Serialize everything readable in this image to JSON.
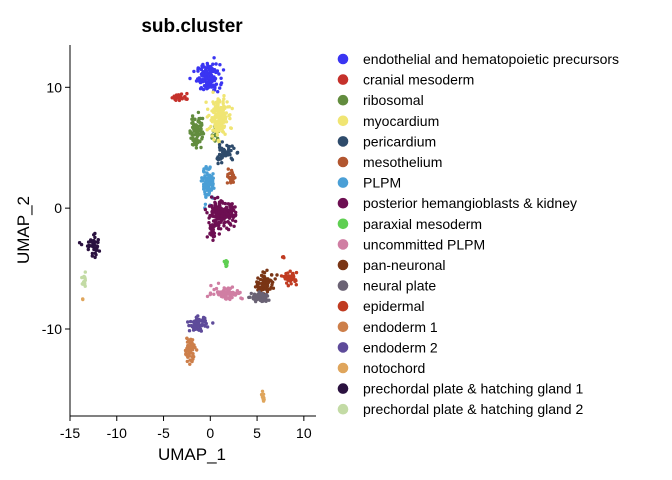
{
  "chart_data": {
    "type": "scatter",
    "title": "sub.cluster",
    "xlabel": "UMAP_1",
    "ylabel": "UMAP_2",
    "xlim": [
      -15,
      11.3
    ],
    "ylim": [
      -17.2,
      13.5
    ],
    "xticks": [
      -15,
      -10,
      -5,
      0,
      5,
      10
    ],
    "xtick_labels": [
      "-15",
      "-10",
      "-5",
      "0",
      "5",
      "10"
    ],
    "yticks": [
      -10,
      0,
      10
    ],
    "ytick_labels": [
      "-10",
      "0",
      "10"
    ],
    "grid": false,
    "legend_position": "right",
    "series": [
      {
        "name": "endothelial and hematopoietic precursors",
        "color": "#3a35f2",
        "clusters": [
          {
            "cx": -0.2,
            "cy": 10.8,
            "sx": 1.1,
            "sy": 1.0,
            "n": 140
          }
        ]
      },
      {
        "name": "cranial mesoderm",
        "color": "#c5312b",
        "clusters": [
          {
            "cx": -3.2,
            "cy": 9.2,
            "sx": 0.9,
            "sy": 0.25,
            "n": 30
          }
        ]
      },
      {
        "name": "ribosomal",
        "color": "#628c3e",
        "clusters": [
          {
            "cx": -1.5,
            "cy": 6.5,
            "sx": 0.6,
            "sy": 1.4,
            "n": 80
          },
          {
            "cx": 0.6,
            "cy": 6.2,
            "sx": 0.5,
            "sy": 0.8,
            "n": 20
          }
        ]
      },
      {
        "name": "myocardium",
        "color": "#f0e573",
        "clusters": [
          {
            "cx": 0.9,
            "cy": 7.5,
            "sx": 0.9,
            "sy": 1.4,
            "n": 170
          }
        ]
      },
      {
        "name": "pericardium",
        "color": "#2e4b6b",
        "clusters": [
          {
            "cx": 1.5,
            "cy": 4.5,
            "sx": 1.0,
            "sy": 0.6,
            "n": 60
          }
        ]
      },
      {
        "name": "mesothelium",
        "color": "#b2562f",
        "clusters": [
          {
            "cx": 2.2,
            "cy": 2.5,
            "sx": 0.3,
            "sy": 0.6,
            "n": 25
          }
        ]
      },
      {
        "name": "PLPM",
        "color": "#4a9fd6",
        "clusters": [
          {
            "cx": -0.2,
            "cy": 2.0,
            "sx": 0.6,
            "sy": 1.2,
            "n": 90
          }
        ]
      },
      {
        "name": "posterior hemangioblasts & kidney",
        "color": "#6d0f52",
        "clusters": [
          {
            "cx": 1.2,
            "cy": -0.5,
            "sx": 1.3,
            "sy": 0.9,
            "n": 190
          },
          {
            "cx": 0.2,
            "cy": -1.8,
            "sx": 0.4,
            "sy": 0.6,
            "n": 25
          }
        ]
      },
      {
        "name": "paraxial mesoderm",
        "color": "#5fcf52",
        "clusters": [
          {
            "cx": 1.7,
            "cy": -4.6,
            "sx": 0.2,
            "sy": 0.4,
            "n": 15
          }
        ]
      },
      {
        "name": "uncommitted PLPM",
        "color": "#d07ea3",
        "clusters": [
          {
            "cx": 1.8,
            "cy": -7.0,
            "sx": 1.5,
            "sy": 0.5,
            "n": 70
          }
        ]
      },
      {
        "name": "pan-neuronal",
        "color": "#7a3515",
        "clusters": [
          {
            "cx": 5.9,
            "cy": -6.2,
            "sx": 0.9,
            "sy": 0.7,
            "n": 90
          }
        ]
      },
      {
        "name": "neural plate",
        "color": "#6a6274",
        "clusters": [
          {
            "cx": 5.3,
            "cy": -7.4,
            "sx": 0.8,
            "sy": 0.4,
            "n": 70
          }
        ]
      },
      {
        "name": "epidermal",
        "color": "#c03b21",
        "clusters": [
          {
            "cx": 8.6,
            "cy": -5.8,
            "sx": 0.6,
            "sy": 0.4,
            "n": 40
          },
          {
            "cx": 7.8,
            "cy": -4.0,
            "sx": 0.1,
            "sy": 0.2,
            "n": 3
          }
        ]
      },
      {
        "name": "endoderm 1",
        "color": "#cd7f4a",
        "clusters": [
          {
            "cx": -2.2,
            "cy": -11.7,
            "sx": 0.5,
            "sy": 0.9,
            "n": 70
          }
        ]
      },
      {
        "name": "endoderm 2",
        "color": "#5e4b9a",
        "clusters": [
          {
            "cx": -1.3,
            "cy": -9.6,
            "sx": 0.8,
            "sy": 0.5,
            "n": 70
          }
        ]
      },
      {
        "name": "notochord",
        "color": "#dfa55c",
        "clusters": [
          {
            "cx": 5.6,
            "cy": -15.7,
            "sx": 0.15,
            "sy": 0.35,
            "n": 12
          },
          {
            "cx": -13.6,
            "cy": -7.5,
            "sx": 0.05,
            "sy": 0.1,
            "n": 2
          }
        ]
      },
      {
        "name": "prechordal plate & hatching gland 1",
        "color": "#2b1240",
        "clusters": [
          {
            "cx": -12.5,
            "cy": -3.2,
            "sx": 0.9,
            "sy": 0.8,
            "n": 40
          }
        ]
      },
      {
        "name": "prechordal plate & hatching gland 2",
        "color": "#c3dba5",
        "clusters": [
          {
            "cx": -13.5,
            "cy": -6.2,
            "sx": 0.2,
            "sy": 0.5,
            "n": 20
          }
        ]
      }
    ]
  }
}
